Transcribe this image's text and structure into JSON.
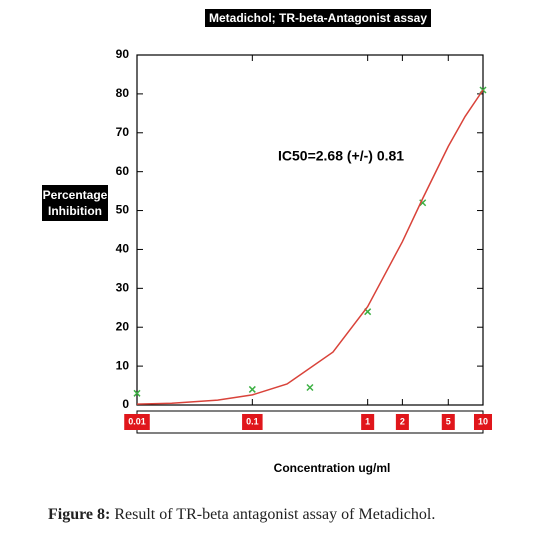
{
  "chart_data": {
    "type": "scatter",
    "title": "Metadichol; TR-beta-Antagonist assay",
    "y_label": "Percentage Inhibition",
    "x_label": "Concentration ug/ml",
    "annotation": "IC50=2.68 (+/-) 0.81",
    "xscale": "log",
    "xlim": [
      0.01,
      10
    ],
    "xticks": [
      0.01,
      0.1,
      1,
      2,
      5,
      10
    ],
    "ylim": [
      0,
      90
    ],
    "yticks": [
      0,
      10,
      20,
      30,
      40,
      50,
      60,
      70,
      80,
      90
    ],
    "series": [
      {
        "style": "points",
        "color": "#3cb043",
        "x": [
          0.01,
          0.1,
          0.316,
          1,
          3,
          10
        ],
        "values": [
          3,
          4,
          4.5,
          24,
          52,
          81
        ]
      },
      {
        "style": "line",
        "color": "#d9433a",
        "x": [
          0.01,
          0.02,
          0.05,
          0.1,
          0.2,
          0.5,
          1,
          2,
          3,
          5,
          7,
          10
        ],
        "values": [
          0.21,
          0.46,
          1.24,
          2.6,
          5.4,
          13.6,
          25.3,
          42,
          53.1,
          66.5,
          74.2,
          81
        ]
      }
    ]
  },
  "caption": {
    "label": "Figure 8:",
    "text": "Result of TR-beta antagonist assay of Metadichol."
  }
}
